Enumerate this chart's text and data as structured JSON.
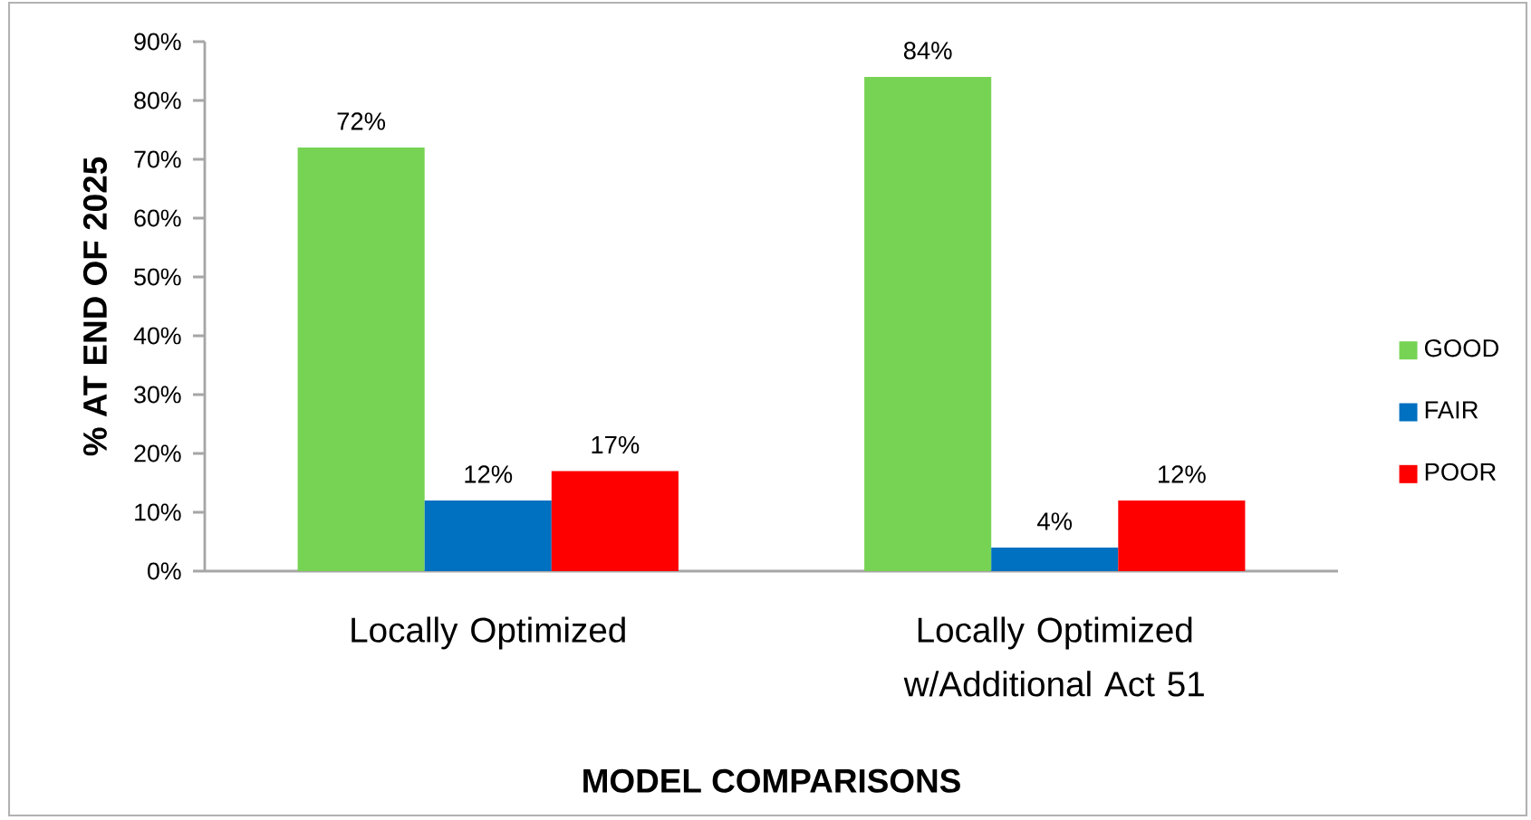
{
  "chart_data": {
    "type": "bar",
    "xlabel": "MODEL COMPARISONS",
    "ylabel": "% AT END OF 2025",
    "categories": [
      "Locally Optimized",
      "Locally Optimized w/Additional  Act 51"
    ],
    "series": [
      {
        "name": "GOOD",
        "color": "#77d353",
        "values": [
          72,
          84
        ],
        "value_labels": [
          "72%",
          "84%"
        ]
      },
      {
        "name": "FAIR",
        "color": "#0070c0",
        "values": [
          12,
          4
        ],
        "value_labels": [
          "12%",
          "4%"
        ]
      },
      {
        "name": "POOR",
        "color": "#ff0000",
        "values": [
          17,
          12
        ],
        "value_labels": [
          "17%",
          "12%"
        ]
      }
    ],
    "ylim": [
      0,
      90
    ],
    "yticks": [
      {
        "value": 0,
        "label": "0%"
      },
      {
        "value": 10,
        "label": "10%"
      },
      {
        "value": 20,
        "label": "20%"
      },
      {
        "value": 30,
        "label": "30%"
      },
      {
        "value": 40,
        "label": "40%"
      },
      {
        "value": 50,
        "label": "50%"
      },
      {
        "value": 60,
        "label": "60%"
      },
      {
        "value": 70,
        "label": "70%"
      },
      {
        "value": 80,
        "label": "80%"
      },
      {
        "value": 90,
        "label": "90%"
      }
    ],
    "legend": "right"
  }
}
